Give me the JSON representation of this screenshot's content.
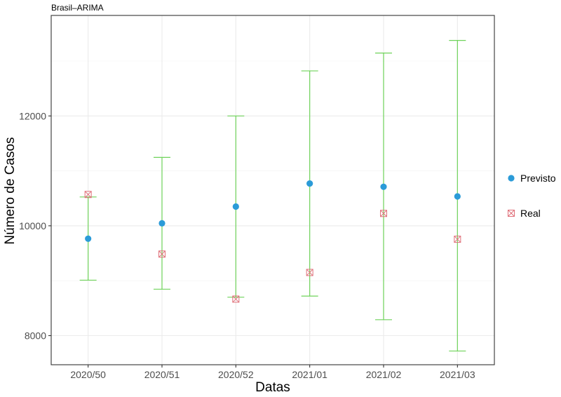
{
  "chart_data": {
    "type": "scatter",
    "title": "Brasil–ARIMA",
    "xlabel": "Datas",
    "ylabel": "Número de Casos",
    "categories": [
      "2020/50",
      "2020/51",
      "2020/52",
      "2021/01",
      "2021/02",
      "2021/03"
    ],
    "ylim": [
      7470,
      13830
    ],
    "yticks": [
      8000,
      10000,
      12000
    ],
    "grid": true,
    "legend_position": "right",
    "series": [
      {
        "name": "Previsto",
        "marker": "circle",
        "color": "#2b9bd8",
        "values": [
          9765,
          10045,
          10350,
          10770,
          10710,
          10535
        ]
      },
      {
        "name": "Real",
        "marker": "square-cross",
        "color": "#e0707a",
        "values": [
          10570,
          9485,
          8665,
          9150,
          10225,
          9755
        ]
      }
    ],
    "error_bars": {
      "color": "#6fd35a",
      "lower": [
        9010,
        8845,
        8700,
        8720,
        8290,
        7720
      ],
      "upper": [
        10525,
        11245,
        12000,
        12820,
        13145,
        13375
      ]
    }
  }
}
